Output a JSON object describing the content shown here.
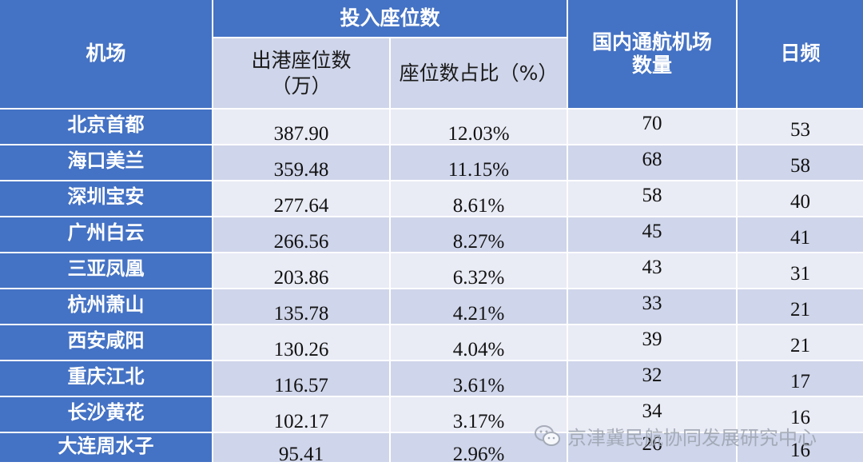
{
  "headers": {
    "airport": "机场",
    "seats_group": "投入座位数",
    "outbound_seats": "出港座位数\n（万）",
    "seat_share": "座位数占比（%）",
    "domestic_count": "国内通航机场\n数量",
    "daily_freq": "日频"
  },
  "rows": [
    {
      "airport": "北京首都",
      "outbound": "387.90",
      "share": "12.03%",
      "count": "70",
      "freq": "53"
    },
    {
      "airport": "海口美兰",
      "outbound": "359.48",
      "share": "11.15%",
      "count": "68",
      "freq": "58"
    },
    {
      "airport": "深圳宝安",
      "outbound": "277.64",
      "share": "8.61%",
      "count": "58",
      "freq": "40"
    },
    {
      "airport": "广州白云",
      "outbound": "266.56",
      "share": "8.27%",
      "count": "45",
      "freq": "41"
    },
    {
      "airport": "三亚凤凰",
      "outbound": "203.86",
      "share": "6.32%",
      "count": "43",
      "freq": "31"
    },
    {
      "airport": "杭州萧山",
      "outbound": "135.78",
      "share": "4.21%",
      "count": "33",
      "freq": "21"
    },
    {
      "airport": "西安咸阳",
      "outbound": "130.26",
      "share": "4.04%",
      "count": "39",
      "freq": "21"
    },
    {
      "airport": "重庆江北",
      "outbound": "116.57",
      "share": "3.61%",
      "count": "32",
      "freq": "17"
    },
    {
      "airport": "长沙黄花",
      "outbound": "102.17",
      "share": "3.17%",
      "count": "34",
      "freq": "16"
    },
    {
      "airport": "大连周水子",
      "outbound": "95.41",
      "share": "2.96%",
      "count": "26",
      "freq": "16"
    }
  ],
  "watermark": {
    "text": "京津冀民航协同发展研究中心",
    "icon": "wechat-icon"
  },
  "colors": {
    "header": "#4472c4",
    "row_light": "#e9ebf5",
    "row_dark": "#cfd5ea"
  }
}
